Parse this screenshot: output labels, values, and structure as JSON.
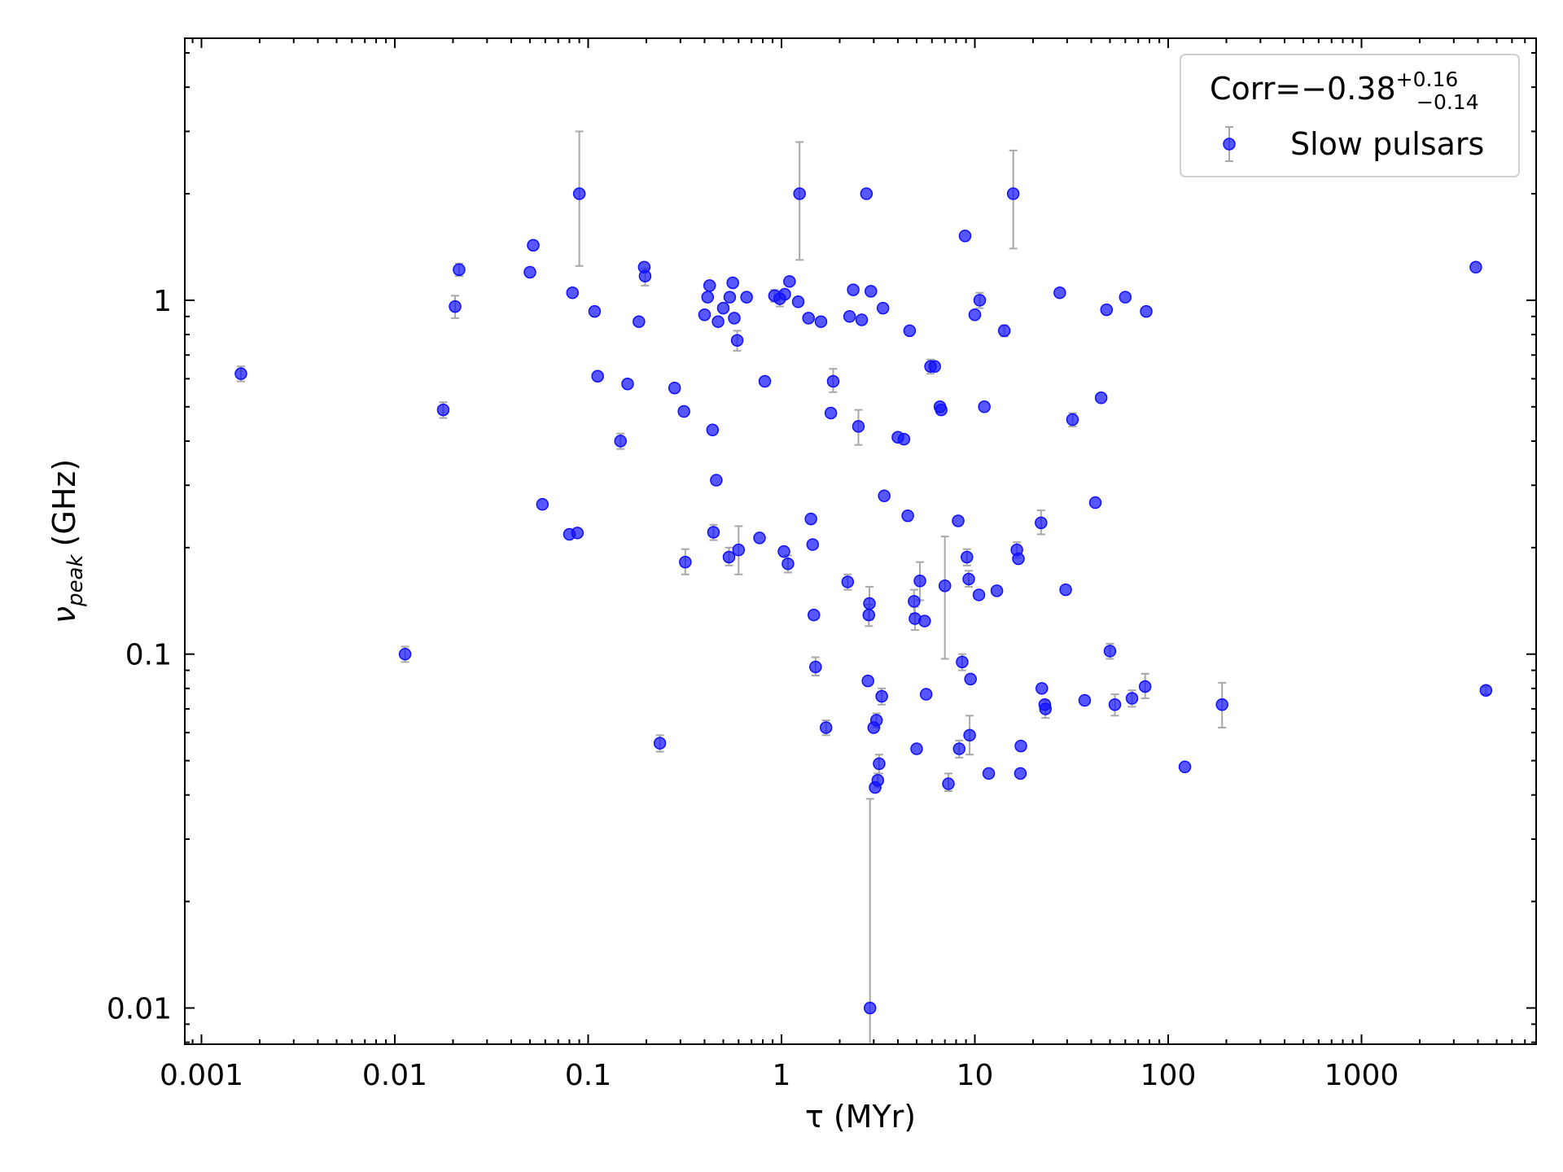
{
  "chart_data": {
    "type": "scatter",
    "xlabel": "τ (MYr)",
    "ylabel_main": "ν",
    "ylabel_sub": "peak",
    "ylabel_unit": "(GHz)",
    "xscale": "log",
    "yscale": "log",
    "xlim": [
      0.00082,
      8000
    ],
    "ylim": [
      0.0079,
      5.5
    ],
    "xticks": [
      {
        "value": 0.001,
        "label": "0.001"
      },
      {
        "value": 0.01,
        "label": "0.01"
      },
      {
        "value": 0.1,
        "label": "0.1"
      },
      {
        "value": 1,
        "label": "1"
      },
      {
        "value": 10,
        "label": "10"
      },
      {
        "value": 100,
        "label": "100"
      },
      {
        "value": 1000,
        "label": "1000"
      }
    ],
    "yticks": [
      {
        "value": 0.01,
        "label": "0.01"
      },
      {
        "value": 0.1,
        "label": "0.1"
      },
      {
        "value": 1,
        "label": "1"
      }
    ],
    "legend": {
      "position": "top-right",
      "corr_text": "Corr=−0.38",
      "corr_sup": "+0.16",
      "corr_sub": "−0.14",
      "series_label": "Slow pulsars"
    },
    "colors": {
      "marker": "#1010ff",
      "errorbar": "#a8a8a8"
    },
    "series": [
      {
        "name": "Slow pulsars",
        "points": [
          {
            "x": 0.0016,
            "y": 0.62,
            "lo": 0.59,
            "hi": 0.65
          },
          {
            "x": 0.0113,
            "y": 0.1,
            "lo": 0.095,
            "hi": 0.105
          },
          {
            "x": 0.0178,
            "y": 0.49,
            "lo": 0.465,
            "hi": 0.515
          },
          {
            "x": 0.0205,
            "y": 0.96,
            "lo": 0.89,
            "hi": 1.03
          },
          {
            "x": 0.0215,
            "y": 1.22,
            "lo": 1.17,
            "hi": 1.27
          },
          {
            "x": 0.05,
            "y": 1.2
          },
          {
            "x": 0.052,
            "y": 1.43
          },
          {
            "x": 0.058,
            "y": 0.265
          },
          {
            "x": 0.08,
            "y": 0.218
          },
          {
            "x": 0.083,
            "y": 1.05
          },
          {
            "x": 0.088,
            "y": 0.22
          },
          {
            "x": 0.09,
            "y": 2.0,
            "lo": 1.25,
            "hi": 3.0
          },
          {
            "x": 0.108,
            "y": 0.93
          },
          {
            "x": 0.112,
            "y": 0.61
          },
          {
            "x": 0.147,
            "y": 0.4,
            "lo": 0.38,
            "hi": 0.42
          },
          {
            "x": 0.16,
            "y": 0.58
          },
          {
            "x": 0.183,
            "y": 0.87
          },
          {
            "x": 0.195,
            "y": 1.24
          },
          {
            "x": 0.197,
            "y": 1.17,
            "lo": 1.1,
            "hi": 1.23
          },
          {
            "x": 0.235,
            "y": 0.056,
            "lo": 0.053,
            "hi": 0.059
          },
          {
            "x": 0.28,
            "y": 0.565
          },
          {
            "x": 0.313,
            "y": 0.485
          },
          {
            "x": 0.318,
            "y": 0.182,
            "lo": 0.168,
            "hi": 0.198
          },
          {
            "x": 0.4,
            "y": 0.91
          },
          {
            "x": 0.415,
            "y": 1.02
          },
          {
            "x": 0.425,
            "y": 1.1
          },
          {
            "x": 0.44,
            "y": 0.43
          },
          {
            "x": 0.445,
            "y": 0.221,
            "lo": 0.21,
            "hi": 0.232
          },
          {
            "x": 0.46,
            "y": 0.31
          },
          {
            "x": 0.47,
            "y": 0.87
          },
          {
            "x": 0.5,
            "y": 0.95
          },
          {
            "x": 0.535,
            "y": 0.188,
            "lo": 0.178,
            "hi": 0.2
          },
          {
            "x": 0.54,
            "y": 1.02
          },
          {
            "x": 0.56,
            "y": 1.12
          },
          {
            "x": 0.57,
            "y": 0.89
          },
          {
            "x": 0.59,
            "y": 0.77,
            "lo": 0.72,
            "hi": 0.82
          },
          {
            "x": 0.6,
            "y": 0.197,
            "lo": 0.168,
            "hi": 0.23
          },
          {
            "x": 0.66,
            "y": 1.02
          },
          {
            "x": 0.77,
            "y": 0.213
          },
          {
            "x": 0.82,
            "y": 0.59
          },
          {
            "x": 0.92,
            "y": 1.03,
            "lo": 0.99,
            "hi": 1.07
          },
          {
            "x": 0.98,
            "y": 1.01,
            "lo": 0.96,
            "hi": 1.06
          },
          {
            "x": 1.03,
            "y": 0.195
          },
          {
            "x": 1.04,
            "y": 1.04
          },
          {
            "x": 1.08,
            "y": 0.18,
            "lo": 0.17,
            "hi": 0.19
          },
          {
            "x": 1.1,
            "y": 1.13
          },
          {
            "x": 1.22,
            "y": 0.99
          },
          {
            "x": 1.24,
            "y": 2.0,
            "lo": 1.3,
            "hi": 2.8
          },
          {
            "x": 1.38,
            "y": 0.89
          },
          {
            "x": 1.42,
            "y": 0.241
          },
          {
            "x": 1.45,
            "y": 0.204
          },
          {
            "x": 1.47,
            "y": 0.129
          },
          {
            "x": 1.5,
            "y": 0.092,
            "lo": 0.087,
            "hi": 0.098
          },
          {
            "x": 1.6,
            "y": 0.87
          },
          {
            "x": 1.7,
            "y": 0.062,
            "lo": 0.059,
            "hi": 0.065
          },
          {
            "x": 1.8,
            "y": 0.48
          },
          {
            "x": 1.85,
            "y": 0.59,
            "lo": 0.55,
            "hi": 0.64
          },
          {
            "x": 2.2,
            "y": 0.16,
            "lo": 0.152,
            "hi": 0.168
          },
          {
            "x": 2.25,
            "y": 0.9
          },
          {
            "x": 2.35,
            "y": 1.07
          },
          {
            "x": 2.5,
            "y": 0.44,
            "lo": 0.39,
            "hi": 0.49
          },
          {
            "x": 2.6,
            "y": 0.88
          },
          {
            "x": 2.75,
            "y": 2.0
          },
          {
            "x": 2.8,
            "y": 0.084
          },
          {
            "x": 2.83,
            "y": 0.129,
            "lo": 0.12,
            "hi": 0.138
          },
          {
            "x": 2.85,
            "y": 0.139,
            "lo": 0.125,
            "hi": 0.155
          },
          {
            "x": 2.87,
            "y": 0.01,
            "lo": 0.0075,
            "hi": 0.039
          },
          {
            "x": 2.9,
            "y": 1.06
          },
          {
            "x": 3.0,
            "y": 0.062
          },
          {
            "x": 3.05,
            "y": 0.042
          },
          {
            "x": 3.1,
            "y": 0.065,
            "lo": 0.062,
            "hi": 0.068
          },
          {
            "x": 3.15,
            "y": 0.044,
            "lo": 0.042,
            "hi": 0.046
          },
          {
            "x": 3.2,
            "y": 0.049,
            "lo": 0.046,
            "hi": 0.052
          },
          {
            "x": 3.3,
            "y": 0.076,
            "lo": 0.072,
            "hi": 0.08
          },
          {
            "x": 3.35,
            "y": 0.95
          },
          {
            "x": 3.4,
            "y": 0.28
          },
          {
            "x": 4.0,
            "y": 0.41
          },
          {
            "x": 4.3,
            "y": 0.405
          },
          {
            "x": 4.5,
            "y": 0.246
          },
          {
            "x": 4.6,
            "y": 0.82
          },
          {
            "x": 4.85,
            "y": 0.141,
            "lo": 0.13,
            "hi": 0.152
          },
          {
            "x": 4.9,
            "y": 0.126,
            "lo": 0.117,
            "hi": 0.136
          },
          {
            "x": 5.0,
            "y": 0.054
          },
          {
            "x": 5.2,
            "y": 0.161,
            "lo": 0.142,
            "hi": 0.182
          },
          {
            "x": 5.5,
            "y": 0.124
          },
          {
            "x": 5.6,
            "y": 0.077
          },
          {
            "x": 5.9,
            "y": 0.65,
            "lo": 0.62,
            "hi": 0.68
          },
          {
            "x": 6.2,
            "y": 0.65
          },
          {
            "x": 6.6,
            "y": 0.5
          },
          {
            "x": 6.7,
            "y": 0.49
          },
          {
            "x": 7.0,
            "y": 0.156,
            "lo": 0.097,
            "hi": 0.215
          },
          {
            "x": 7.3,
            "y": 0.043,
            "lo": 0.041,
            "hi": 0.046
          },
          {
            "x": 8.2,
            "y": 0.238
          },
          {
            "x": 8.3,
            "y": 0.054,
            "lo": 0.051,
            "hi": 0.057
          },
          {
            "x": 8.6,
            "y": 0.095,
            "lo": 0.09,
            "hi": 0.1
          },
          {
            "x": 8.9,
            "y": 1.52
          },
          {
            "x": 9.1,
            "y": 0.188,
            "lo": 0.178,
            "hi": 0.198
          },
          {
            "x": 9.3,
            "y": 0.163,
            "lo": 0.155,
            "hi": 0.172
          },
          {
            "x": 9.4,
            "y": 0.059,
            "lo": 0.052,
            "hi": 0.067
          },
          {
            "x": 9.5,
            "y": 0.085
          },
          {
            "x": 10.0,
            "y": 0.91
          },
          {
            "x": 10.5,
            "y": 0.147
          },
          {
            "x": 10.6,
            "y": 1.0,
            "lo": 0.95,
            "hi": 1.05
          },
          {
            "x": 11.2,
            "y": 0.5
          },
          {
            "x": 11.8,
            "y": 0.046
          },
          {
            "x": 13.0,
            "y": 0.151
          },
          {
            "x": 14.2,
            "y": 0.82,
            "lo": 0.79,
            "hi": 0.85
          },
          {
            "x": 15.8,
            "y": 2.0,
            "lo": 1.4,
            "hi": 2.65
          },
          {
            "x": 16.5,
            "y": 0.197,
            "lo": 0.187,
            "hi": 0.207
          },
          {
            "x": 16.8,
            "y": 0.186
          },
          {
            "x": 17.2,
            "y": 0.046
          },
          {
            "x": 17.3,
            "y": 0.055
          },
          {
            "x": 22.0,
            "y": 0.235,
            "lo": 0.218,
            "hi": 0.255
          },
          {
            "x": 22.2,
            "y": 0.08
          },
          {
            "x": 23.0,
            "y": 0.072
          },
          {
            "x": 23.2,
            "y": 0.07,
            "lo": 0.066,
            "hi": 0.074
          },
          {
            "x": 27.5,
            "y": 1.05
          },
          {
            "x": 29.5,
            "y": 0.152
          },
          {
            "x": 32.0,
            "y": 0.46,
            "lo": 0.44,
            "hi": 0.48
          },
          {
            "x": 37.0,
            "y": 0.074
          },
          {
            "x": 42.0,
            "y": 0.268
          },
          {
            "x": 45.0,
            "y": 0.53
          },
          {
            "x": 48.0,
            "y": 0.94
          },
          {
            "x": 50.0,
            "y": 0.102,
            "lo": 0.097,
            "hi": 0.107
          },
          {
            "x": 53.0,
            "y": 0.072,
            "lo": 0.067,
            "hi": 0.077
          },
          {
            "x": 60.0,
            "y": 1.02
          },
          {
            "x": 65.0,
            "y": 0.075,
            "lo": 0.071,
            "hi": 0.079
          },
          {
            "x": 76.0,
            "y": 0.081,
            "lo": 0.075,
            "hi": 0.088
          },
          {
            "x": 77.0,
            "y": 0.93
          },
          {
            "x": 122.0,
            "y": 0.048
          },
          {
            "x": 190.0,
            "y": 0.072,
            "lo": 0.062,
            "hi": 0.083
          },
          {
            "x": 3900.0,
            "y": 1.24
          },
          {
            "x": 4400.0,
            "y": 0.079,
            "lo": 0.077,
            "hi": 0.081
          }
        ]
      }
    ]
  }
}
